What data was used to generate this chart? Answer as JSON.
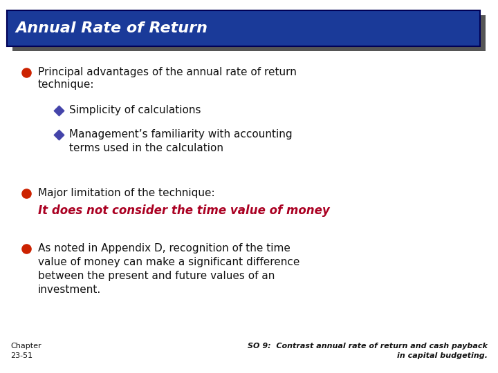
{
  "title": "Annual Rate of Return",
  "title_bg_color": "#1a3a99",
  "title_shadow_color": "#555555",
  "title_text_color": "#ffffff",
  "bg_color": "#ffffff",
  "bullet_color": "#cc2200",
  "sub_bullet_color": "#4444aa",
  "italic_red_color": "#aa0022",
  "black_text": "#111111",
  "bullet1_line1": "Principal advantages of the annual rate of return",
  "bullet1_line2": "technique:",
  "sub1": "Simplicity of calculations",
  "sub2_line1": "Management’s familiarity with accounting",
  "sub2_line2": "terms used in the calculation",
  "bullet2": "Major limitation of the technique:",
  "italic_text": "It does not consider the time value of money",
  "bullet3_line1": "As noted in Appendix D, recognition of the time",
  "bullet3_line2": "value of money can make a significant difference",
  "bullet3_line3": "between the present and future values of an",
  "bullet3_line4": "investment.",
  "footer_left_line1": "Chapter",
  "footer_left_line2": "23-51",
  "footer_right_line1": "SO 9:  Contrast annual rate of return and cash payback",
  "footer_right_line2": "in capital budgeting."
}
